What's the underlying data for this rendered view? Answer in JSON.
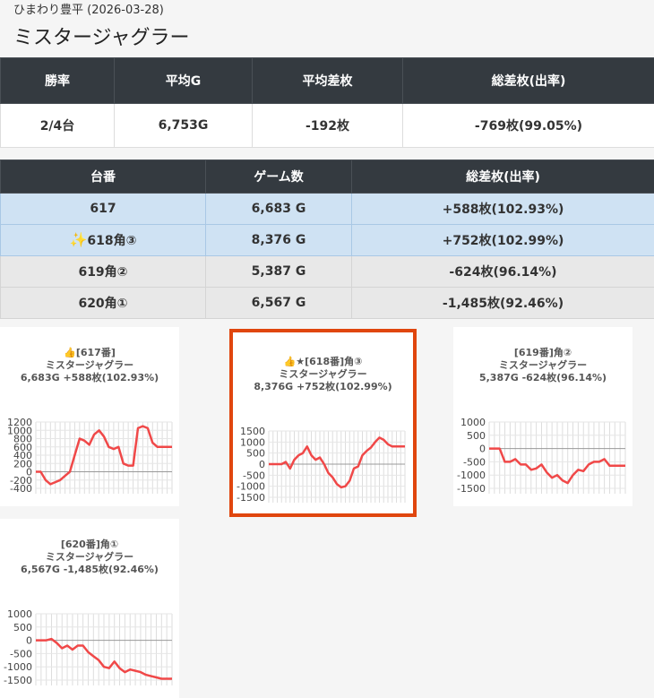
{
  "header": {
    "subtitle": "ひまわり豊平 (2026-03-28)",
    "title": "ミスタージャグラー"
  },
  "summary": {
    "headers": [
      "勝率",
      "平均G",
      "平均差枚",
      "総差枚(出率)"
    ],
    "values": [
      "2/4台",
      "6,753G",
      "-192枚",
      "-769枚(99.05%)"
    ]
  },
  "machines": {
    "headers": [
      "台番",
      "ゲーム数",
      "総差枚(出率)"
    ],
    "rows": [
      {
        "id": "617",
        "games": "6,683 G",
        "diff": "+588枚(102.93%)",
        "result": "win"
      },
      {
        "icon": "sparkles-icon",
        "id": "618角③",
        "games": "8,376 G",
        "diff": "+752枚(102.99%)",
        "result": "win"
      },
      {
        "id": "619角②",
        "games": "5,387 G",
        "diff": "-624枚(96.14%)",
        "result": "lose"
      },
      {
        "id": "620角①",
        "games": "6,567 G",
        "diff": "-1,485枚(92.46%)",
        "result": "lose"
      }
    ]
  },
  "colors": {
    "header_bg": "#343a40",
    "win_row": "#cfe2f3",
    "lose_row": "#e8e8e8",
    "line": "#f04848",
    "highlight": "#e0460e"
  },
  "chart_data": [
    {
      "type": "line",
      "title_lines": [
        "👍[617番]",
        "ミスタージャグラー",
        "6,683G +588枚(102.93%)"
      ],
      "yticks": [
        "1200",
        "1000",
        "800",
        "600",
        "400",
        "200",
        "0",
        "-200",
        "-400"
      ],
      "ylim": [
        -400,
        1200
      ],
      "values": [
        0,
        0,
        -200,
        -300,
        -250,
        -200,
        -100,
        0,
        400,
        800,
        750,
        650,
        900,
        1000,
        850,
        600,
        550,
        600,
        200,
        150,
        150,
        1050,
        1100,
        1050,
        700,
        600,
        600,
        600,
        600
      ]
    },
    {
      "type": "line",
      "highlight": true,
      "title_lines": [
        "👍★[618番]角③",
        "ミスタージャグラー",
        "8,376G +752枚(102.99%)"
      ],
      "yticks": [
        "1500",
        "1000",
        "500",
        "0",
        "-500",
        "-1000",
        "-1500"
      ],
      "ylim": [
        -1500,
        1500
      ],
      "values": [
        0,
        0,
        0,
        0,
        100,
        -200,
        200,
        400,
        500,
        800,
        400,
        200,
        300,
        0,
        -400,
        -600,
        -900,
        -1050,
        -1000,
        -750,
        -200,
        -100,
        400,
        600,
        750,
        1000,
        1200,
        1100,
        900,
        800,
        800,
        800,
        800
      ]
    },
    {
      "type": "line",
      "title_lines": [
        "[619番]角②",
        "ミスタージャグラー",
        "5,387G -624枚(96.14%)"
      ],
      "yticks": [
        "1000",
        "500",
        "0",
        "-500",
        "-1000",
        "-1500"
      ],
      "ylim": [
        -1500,
        1000
      ],
      "values": [
        0,
        0,
        0,
        -500,
        -500,
        -400,
        -600,
        -600,
        -800,
        -750,
        -600,
        -900,
        -1100,
        -1000,
        -1200,
        -1300,
        -1000,
        -800,
        -850,
        -600,
        -500,
        -500,
        -400,
        -650,
        -650,
        -650,
        -650
      ]
    },
    {
      "type": "line",
      "title_lines": [
        "[620番]角①",
        "ミスタージャグラー",
        "6,567G -1,485枚(92.46%)"
      ],
      "yticks": [
        "1000",
        "500",
        "0",
        "-500",
        "-1000",
        "-1500"
      ],
      "ylim": [
        -1500,
        1000
      ],
      "values": [
        0,
        0,
        0,
        50,
        -100,
        -300,
        -200,
        -350,
        -200,
        -200,
        -450,
        -600,
        -750,
        -1000,
        -1050,
        -800,
        -1050,
        -1200,
        -1100,
        -1150,
        -1200,
        -1300,
        -1350,
        -1400,
        -1450,
        -1450,
        -1450
      ]
    }
  ]
}
